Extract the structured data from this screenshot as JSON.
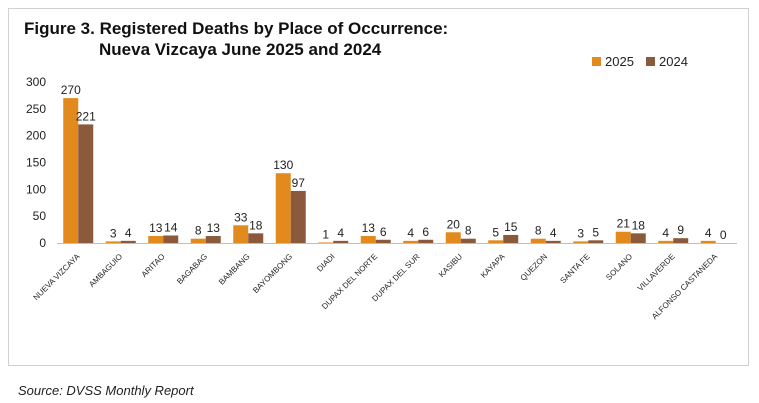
{
  "chart_data": {
    "type": "bar",
    "title_line1": "Figure 3. Registered Deaths by Place of Occurrence:",
    "title_line2": "Nueva Vizcaya June 2025 and 2024",
    "xlabel": "",
    "ylabel": "",
    "ylim": [
      0,
      300
    ],
    "yticks": [
      0,
      50,
      100,
      150,
      200,
      250,
      300
    ],
    "categories": [
      "NUEVA VIZCAYA",
      "AMBAGUIO",
      "ARITAO",
      "BAGABAG",
      "BAMBANG",
      "BAYOMBONG",
      "DIADI",
      "DUPAX DEL NORTE",
      "DUPAX DEL SUR",
      "KASIBU",
      "KAYAPA",
      "QUEZON",
      "SANTA FE",
      "SOLANO",
      "VILLAVERDE",
      "ALFONSO CASTANEDA"
    ],
    "series": [
      {
        "name": "2025",
        "color": "#E38A1E",
        "values": [
          270,
          3,
          13,
          8,
          33,
          130,
          1,
          13,
          4,
          20,
          5,
          8,
          3,
          21,
          4,
          4
        ]
      },
      {
        "name": "2024",
        "color": "#8B5A3C",
        "values": [
          221,
          4,
          14,
          13,
          18,
          97,
          4,
          6,
          6,
          8,
          15,
          4,
          5,
          18,
          9,
          0
        ]
      }
    ],
    "legend_position": "top-right",
    "grid": false
  },
  "source": "Source: DVSS Monthly Report"
}
